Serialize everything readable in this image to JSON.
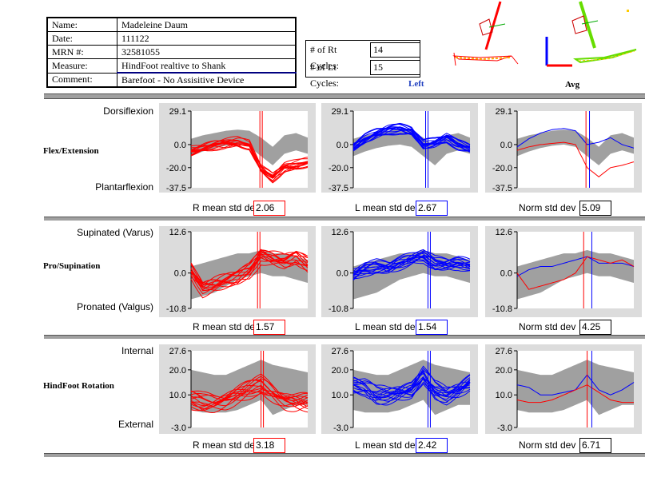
{
  "patient": {
    "rows": [
      {
        "key": "Name:",
        "value": "Madeleine Daum"
      },
      {
        "key": "Date:",
        "value": "111122"
      },
      {
        "key": "MRN #:",
        "value": "32581055"
      },
      {
        "key": "Measure:",
        "value": "HindFoot realtive to Shank"
      },
      {
        "key": "Comment:",
        "value": "Barefoot - No Assisitive Device"
      }
    ]
  },
  "cycles": {
    "rt_label": "# of Rt Cycles:",
    "rt_value": "14",
    "lt_label": "# of Lt Cycles:",
    "lt_value": "15"
  },
  "views": {
    "left_caption": "Left",
    "avg_caption": "Avg"
  },
  "colors": {
    "right": "#ff0000",
    "left": "#0000ff",
    "norm": "#a0a0a0",
    "panel": "#dcdcdc"
  },
  "rows": [
    {
      "title": "Flex/Extension",
      "top_label": "Dorsiflexion",
      "bottom_label": "Plantarflexion",
      "stats": [
        {
          "label": "R mean std dev",
          "value": "2.06",
          "color": "#ff0000"
        },
        {
          "label": "L mean std dev",
          "value": "2.67",
          "color": "#0000ff"
        },
        {
          "label": "Norm std dev",
          "value": "5.09",
          "color": "#000000"
        }
      ]
    },
    {
      "title": "Pro/Supination",
      "top_label": "Supinated (Varus)",
      "bottom_label": "Pronated (Valgus)",
      "stats": [
        {
          "label": "R mean std dev",
          "value": "1.57",
          "color": "#ff0000"
        },
        {
          "label": "L mean std dev",
          "value": "1.54",
          "color": "#0000ff"
        },
        {
          "label": "Norm std dev",
          "value": "4.25",
          "color": "#000000"
        }
      ]
    },
    {
      "title": "HindFoot Rotation",
      "top_label": "Internal",
      "bottom_label": "External",
      "stats": [
        {
          "label": "R mean std dev",
          "value": "3.18",
          "color": "#ff0000"
        },
        {
          "label": "L mean std dev",
          "value": "2.42",
          "color": "#0000ff"
        },
        {
          "label": "Norm std dev",
          "value": "6.71",
          "color": "#000000"
        }
      ]
    }
  ],
  "chart_data": [
    {
      "type": "line",
      "row": 0,
      "panels": [
        "right",
        "left",
        "avg"
      ],
      "y_ticks": [
        "29.1",
        "0.0",
        "-20.0",
        "-37.5"
      ],
      "y_tick_values": [
        29.1,
        0.0,
        -20.0,
        -37.5
      ],
      "ylim": [
        -37.5,
        29.1
      ],
      "x": [
        0,
        10,
        20,
        30,
        40,
        50,
        60,
        70,
        80,
        90,
        100
      ],
      "norm_upper": [
        5,
        8,
        10,
        12,
        13,
        12,
        6,
        -2,
        8,
        10,
        6
      ],
      "norm_lower": [
        -10,
        -6,
        -3,
        -1,
        0,
        -2,
        -10,
        -18,
        -8,
        -5,
        -8
      ],
      "right_mean": [
        -5,
        -2,
        0,
        1,
        2,
        0,
        -20,
        -28,
        -20,
        -18,
        -15
      ],
      "left_mean": [
        -2,
        5,
        10,
        13,
        14,
        12,
        0,
        2,
        6,
        0,
        -3
      ],
      "right_toe_off": 59,
      "left_toe_off": 62,
      "series": [
        {
          "name": "R",
          "spread": 5
        },
        {
          "name": "L",
          "spread": 5
        }
      ]
    },
    {
      "type": "line",
      "row": 1,
      "panels": [
        "right",
        "left",
        "avg"
      ],
      "y_ticks": [
        "12.6",
        "0.0",
        "-10.8"
      ],
      "y_tick_values": [
        12.6,
        0.0,
        -10.8
      ],
      "ylim": [
        -10.8,
        12.6
      ],
      "x": [
        0,
        10,
        20,
        30,
        40,
        50,
        60,
        70,
        80,
        90,
        100
      ],
      "norm_upper": [
        2,
        3,
        4,
        5,
        6,
        6,
        7,
        6,
        6,
        5,
        4
      ],
      "norm_lower": [
        -8,
        -7,
        -6,
        -4,
        -2,
        -1,
        0,
        -1,
        -1,
        -2,
        -3
      ],
      "right_mean": [
        0,
        -5,
        -4,
        -3,
        -2,
        0,
        5,
        4,
        3,
        4,
        2
      ],
      "left_mean": [
        -1,
        1,
        2,
        2,
        3,
        4,
        5,
        3,
        3,
        3,
        2
      ],
      "right_toe_off": 57,
      "left_toe_off": 64,
      "series": [
        {
          "name": "R",
          "spread": 3
        },
        {
          "name": "L",
          "spread": 2.5
        }
      ]
    },
    {
      "type": "line",
      "row": 2,
      "panels": [
        "right",
        "left",
        "avg"
      ],
      "y_ticks": [
        "27.6",
        "20.0",
        "10.0",
        "-3.0"
      ],
      "y_tick_values": [
        27.6,
        20.0,
        10.0,
        -3.0
      ],
      "ylim": [
        -3.0,
        27.6
      ],
      "x": [
        0,
        10,
        20,
        30,
        40,
        50,
        60,
        70,
        80,
        90,
        100
      ],
      "norm_upper": [
        20,
        19,
        18,
        18,
        20,
        22,
        24,
        22,
        21,
        20,
        19
      ],
      "norm_lower": [
        4,
        3,
        3,
        3,
        4,
        6,
        8,
        2,
        4,
        6,
        6
      ],
      "right_mean": [
        8,
        7,
        7,
        8,
        10,
        12,
        14,
        11,
        8,
        7,
        7
      ],
      "left_mean": [
        14,
        13,
        10,
        10,
        11,
        12,
        18,
        12,
        10,
        12,
        15
      ],
      "right_toe_off": 60,
      "left_toe_off": 64,
      "series": [
        {
          "name": "R",
          "spread": 4
        },
        {
          "name": "L",
          "spread": 4
        }
      ]
    }
  ]
}
